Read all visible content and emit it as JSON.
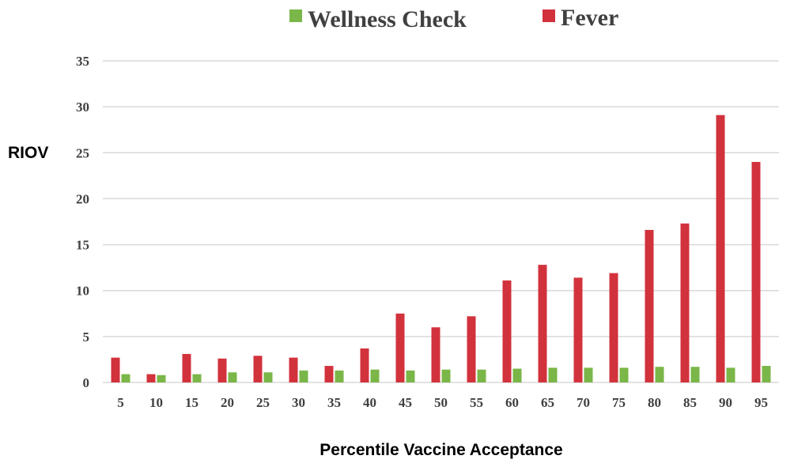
{
  "chart_data": {
    "type": "bar",
    "ylabel": "RIOV",
    "xlabel": "Percentile Vaccine Acceptance",
    "ylim": [
      0,
      35
    ],
    "yticks": [
      "0",
      "5",
      "10",
      "15",
      "20",
      "25",
      "30",
      "35"
    ],
    "grid": true,
    "legend_position": "top",
    "categories": [
      "5",
      "10",
      "15",
      "20",
      "25",
      "30",
      "35",
      "40",
      "45",
      "50",
      "55",
      "60",
      "65",
      "70",
      "75",
      "80",
      "85",
      "90",
      "95"
    ],
    "series": [
      {
        "name": "Fever",
        "color": "#d2323c",
        "values": [
          2.7,
          0.9,
          3.1,
          2.6,
          2.9,
          2.7,
          1.8,
          3.7,
          7.5,
          6.0,
          7.2,
          11.1,
          12.8,
          11.4,
          11.9,
          16.6,
          17.3,
          29.1,
          24.0
        ]
      },
      {
        "name": "Wellness Check",
        "color": "#7ab648",
        "values": [
          0.9,
          0.8,
          0.9,
          1.1,
          1.1,
          1.3,
          1.3,
          1.4,
          1.3,
          1.4,
          1.4,
          1.5,
          1.6,
          1.6,
          1.6,
          1.7,
          1.7,
          1.6,
          1.8
        ]
      }
    ],
    "legend": [
      {
        "label": "Wellness Check",
        "color": "#7ab648"
      },
      {
        "label": "Fever",
        "color": "#d2323c"
      }
    ]
  }
}
